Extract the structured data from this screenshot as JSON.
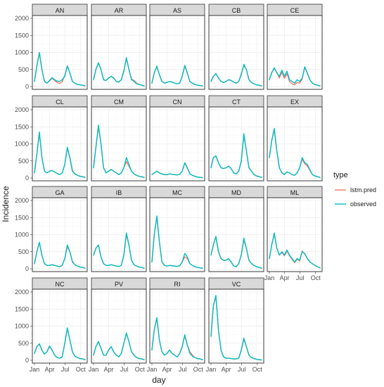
{
  "chart_data": {
    "type": "line",
    "xlabel": "day",
    "ylabel": "Incidence",
    "x_ticks": [
      {
        "label": "Jan",
        "day": 1
      },
      {
        "label": "Apr",
        "day": 91
      },
      {
        "label": "Jul",
        "day": 182
      },
      {
        "label": "Oct",
        "day": 274
      }
    ],
    "x_range": [
      1,
      300
    ],
    "y_ticks": [
      0,
      500,
      1000,
      1500,
      2000
    ],
    "ylim": [
      0,
      2000
    ],
    "grid": true,
    "legend": {
      "title": "type",
      "placement": "right",
      "entries": [
        {
          "name": "lstm.pred",
          "color": "#F8766D"
        },
        {
          "name": "observed",
          "color": "#00BFC4"
        }
      ]
    },
    "x": [
      1,
      15,
      30,
      45,
      60,
      75,
      90,
      105,
      120,
      135,
      150,
      165,
      180,
      195,
      210,
      225,
      240,
      255,
      270,
      285,
      300
    ],
    "panels": [
      {
        "name": "AN",
        "observed": [
          150,
          600,
          1000,
          500,
          150,
          100,
          180,
          260,
          200,
          160,
          150,
          200,
          300,
          600,
          400,
          150,
          100,
          60,
          50,
          40,
          20
        ],
        "lstm.pred": [
          150,
          600,
          980,
          500,
          150,
          100,
          170,
          240,
          180,
          120,
          90,
          140,
          330,
          610,
          400,
          150,
          100,
          60,
          50,
          40,
          20
        ]
      },
      {
        "name": "AR",
        "observed": [
          200,
          500,
          700,
          500,
          200,
          180,
          250,
          300,
          250,
          150,
          130,
          200,
          450,
          850,
          500,
          200,
          150,
          80,
          60,
          40,
          20
        ],
        "lstm.pred": [
          200,
          500,
          690,
          500,
          200,
          180,
          250,
          300,
          250,
          150,
          130,
          200,
          480,
          820,
          500,
          220,
          180,
          100,
          60,
          40,
          20
        ]
      },
      {
        "name": "AS",
        "observed": [
          100,
          400,
          600,
          350,
          150,
          100,
          120,
          150,
          130,
          100,
          80,
          100,
          300,
          620,
          400,
          150,
          100,
          60,
          40,
          30,
          20
        ],
        "lstm.pred": [
          100,
          400,
          590,
          350,
          150,
          100,
          120,
          150,
          130,
          100,
          80,
          100,
          300,
          600,
          400,
          150,
          100,
          60,
          40,
          30,
          20
        ]
      },
      {
        "name": "CB",
        "observed": [
          150,
          300,
          380,
          250,
          150,
          120,
          150,
          200,
          180,
          130,
          100,
          150,
          350,
          650,
          500,
          200,
          120,
          80,
          50,
          40,
          20
        ],
        "lstm.pred": [
          150,
          300,
          370,
          250,
          150,
          120,
          150,
          200,
          180,
          130,
          100,
          150,
          380,
          620,
          500,
          200,
          120,
          80,
          50,
          40,
          20
        ]
      },
      {
        "name": "CE",
        "observed": [
          200,
          400,
          550,
          400,
          300,
          480,
          300,
          450,
          200,
          150,
          100,
          200,
          150,
          250,
          580,
          400,
          200,
          100,
          60,
          40,
          20
        ],
        "lstm.pred": [
          200,
          420,
          520,
          420,
          250,
          420,
          240,
          380,
          150,
          80,
          50,
          120,
          100,
          220,
          560,
          400,
          200,
          100,
          60,
          40,
          20
        ]
      },
      {
        "name": "CL",
        "observed": [
          150,
          700,
          1350,
          600,
          200,
          150,
          200,
          220,
          180,
          130,
          100,
          150,
          400,
          900,
          600,
          200,
          120,
          80,
          50,
          40,
          20
        ],
        "lstm.pred": [
          150,
          700,
          1320,
          600,
          200,
          150,
          200,
          220,
          180,
          130,
          100,
          150,
          400,
          870,
          600,
          230,
          120,
          80,
          50,
          40,
          20
        ]
      },
      {
        "name": "CM",
        "observed": [
          300,
          900,
          1550,
          1000,
          300,
          150,
          200,
          250,
          200,
          150,
          100,
          150,
          300,
          600,
          400,
          200,
          120,
          80,
          50,
          40,
          20
        ],
        "lstm.pred": [
          300,
          900,
          1500,
          1000,
          300,
          150,
          200,
          250,
          200,
          150,
          100,
          150,
          300,
          480,
          350,
          200,
          120,
          80,
          50,
          40,
          20
        ]
      },
      {
        "name": "CN",
        "observed": [
          100,
          150,
          200,
          150,
          120,
          100,
          100,
          120,
          110,
          100,
          90,
          110,
          200,
          450,
          300,
          120,
          80,
          50,
          30,
          20,
          10
        ],
        "lstm.pred": [
          100,
          150,
          200,
          150,
          120,
          100,
          100,
          120,
          110,
          100,
          90,
          110,
          200,
          440,
          300,
          120,
          80,
          50,
          30,
          20,
          10
        ]
      },
      {
        "name": "CT",
        "observed": [
          300,
          600,
          650,
          450,
          300,
          280,
          300,
          350,
          280,
          150,
          120,
          200,
          500,
          1300,
          800,
          300,
          200,
          100,
          60,
          40,
          20
        ],
        "lstm.pred": [
          300,
          600,
          640,
          450,
          300,
          280,
          300,
          350,
          280,
          150,
          120,
          200,
          500,
          1250,
          800,
          300,
          200,
          100,
          60,
          40,
          20
        ]
      },
      {
        "name": "EX",
        "observed": [
          600,
          1100,
          1450,
          800,
          300,
          150,
          100,
          180,
          150,
          100,
          80,
          150,
          300,
          600,
          450,
          400,
          250,
          100,
          60,
          40,
          20
        ],
        "lstm.pred": [
          600,
          1100,
          1400,
          800,
          300,
          150,
          100,
          180,
          150,
          100,
          80,
          150,
          300,
          550,
          420,
          350,
          230,
          100,
          60,
          40,
          20
        ]
      },
      {
        "name": "GA",
        "observed": [
          150,
          500,
          780,
          400,
          150,
          100,
          100,
          120,
          100,
          80,
          60,
          100,
          300,
          700,
          500,
          200,
          120,
          80,
          50,
          40,
          20
        ],
        "lstm.pred": [
          150,
          500,
          760,
          400,
          150,
          100,
          100,
          120,
          100,
          80,
          60,
          100,
          300,
          650,
          500,
          220,
          120,
          80,
          50,
          40,
          20
        ]
      },
      {
        "name": "IB",
        "observed": [
          400,
          600,
          700,
          350,
          150,
          100,
          100,
          120,
          100,
          80,
          70,
          100,
          400,
          1050,
          700,
          250,
          120,
          80,
          50,
          40,
          20
        ],
        "lstm.pred": [
          400,
          600,
          690,
          350,
          150,
          100,
          100,
          120,
          100,
          80,
          70,
          100,
          400,
          1000,
          700,
          250,
          120,
          80,
          50,
          40,
          20
        ]
      },
      {
        "name": "MC",
        "observed": [
          200,
          1000,
          1550,
          800,
          200,
          100,
          80,
          100,
          90,
          80,
          70,
          90,
          200,
          450,
          350,
          150,
          100,
          60,
          40,
          30,
          20
        ],
        "lstm.pred": [
          200,
          1000,
          1520,
          800,
          200,
          100,
          80,
          100,
          90,
          80,
          70,
          90,
          200,
          350,
          300,
          150,
          100,
          60,
          40,
          30,
          20
        ]
      },
      {
        "name": "MD",
        "observed": [
          400,
          700,
          950,
          500,
          300,
          250,
          250,
          300,
          200,
          80,
          60,
          150,
          400,
          900,
          600,
          250,
          150,
          100,
          60,
          40,
          20
        ],
        "lstm.pred": [
          400,
          700,
          930,
          500,
          300,
          250,
          250,
          300,
          200,
          80,
          60,
          150,
          420,
          850,
          600,
          250,
          150,
          100,
          60,
          40,
          20
        ]
      },
      {
        "name": "ML",
        "observed": [
          300,
          700,
          1050,
          600,
          400,
          500,
          400,
          550,
          400,
          300,
          200,
          300,
          250,
          500,
          450,
          300,
          200,
          150,
          100,
          60,
          30
        ],
        "lstm.pred": [
          300,
          700,
          1020,
          600,
          400,
          480,
          380,
          520,
          380,
          280,
          180,
          280,
          230,
          520,
          430,
          300,
          200,
          150,
          100,
          60,
          30
        ]
      },
      {
        "name": "NC",
        "observed": [
          200,
          400,
          480,
          300,
          180,
          250,
          420,
          300,
          150,
          80,
          60,
          100,
          500,
          950,
          600,
          250,
          120,
          80,
          50,
          40,
          20
        ],
        "lstm.pred": [
          200,
          400,
          470,
          300,
          180,
          250,
          400,
          300,
          150,
          80,
          60,
          100,
          500,
          920,
          600,
          250,
          120,
          80,
          50,
          40,
          20
        ]
      },
      {
        "name": "PV",
        "observed": [
          150,
          400,
          550,
          350,
          150,
          150,
          300,
          400,
          250,
          150,
          100,
          200,
          500,
          800,
          550,
          250,
          150,
          80,
          50,
          40,
          20
        ],
        "lstm.pred": [
          150,
          400,
          540,
          350,
          150,
          150,
          300,
          400,
          250,
          150,
          100,
          200,
          500,
          780,
          550,
          250,
          150,
          80,
          50,
          40,
          20
        ]
      },
      {
        "name": "RI",
        "observed": [
          300,
          900,
          1250,
          600,
          250,
          150,
          200,
          300,
          200,
          150,
          100,
          200,
          400,
          750,
          450,
          200,
          120,
          80,
          50,
          40,
          20
        ],
        "lstm.pred": [
          300,
          900,
          1220,
          600,
          250,
          150,
          200,
          300,
          200,
          150,
          100,
          200,
          400,
          720,
          450,
          250,
          150,
          80,
          50,
          40,
          20
        ]
      },
      {
        "name": "VC",
        "observed": [
          700,
          1600,
          1900,
          900,
          300,
          100,
          60,
          60,
          50,
          40,
          40,
          60,
          300,
          650,
          400,
          150,
          80,
          50,
          30,
          20,
          10
        ],
        "lstm.pred": [
          700,
          1600,
          1870,
          900,
          300,
          100,
          60,
          60,
          50,
          40,
          40,
          60,
          300,
          620,
          400,
          150,
          80,
          50,
          30,
          20,
          10
        ]
      }
    ]
  }
}
